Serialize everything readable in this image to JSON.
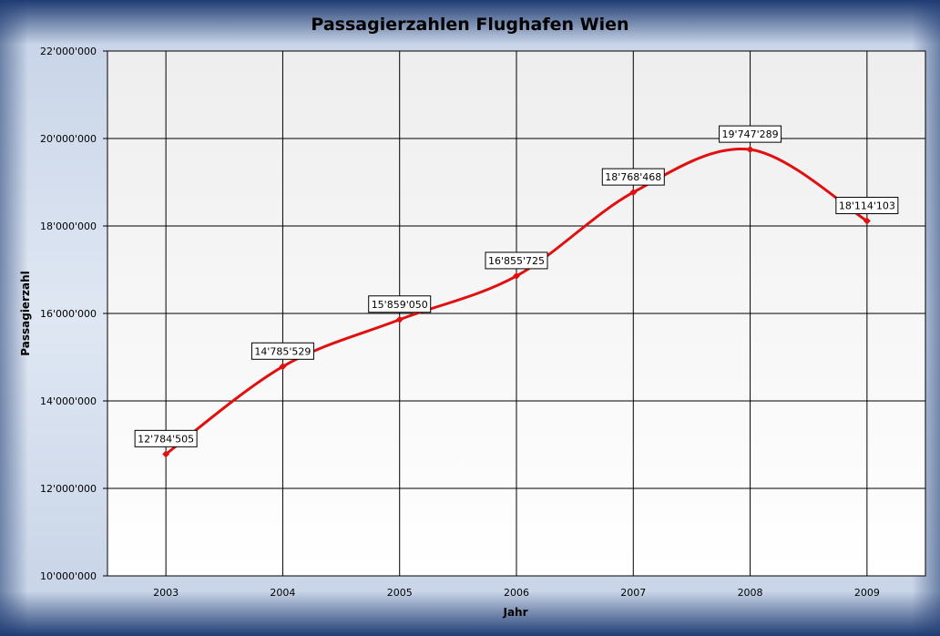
{
  "chart_data": {
    "type": "line",
    "title": "Passagierzahlen Flughafen Wien",
    "xlabel": "Jahr",
    "ylabel": "Passagierzahl",
    "categories": [
      "2003",
      "2004",
      "2005",
      "2006",
      "2007",
      "2008",
      "2009"
    ],
    "series": [
      {
        "values": [
          12784505,
          14785529,
          15859050,
          16855725,
          18768468,
          19747289,
          18114103
        ],
        "data_labels": [
          "12'784'505",
          "14'785'529",
          "15'859'050",
          "16'855'725",
          "18'768'468",
          "19'747'289",
          "18'114'103"
        ],
        "color": "#e01010",
        "smooth": true
      }
    ],
    "ylim": [
      10000000,
      22000000
    ],
    "yticks": [
      10000000,
      12000000,
      14000000,
      16000000,
      18000000,
      20000000,
      22000000
    ],
    "ytick_labels": [
      "10'000'000",
      "12'000'000",
      "14'000'000",
      "16'000'000",
      "18'000'000",
      "20'000'000",
      "22'000'000"
    ],
    "grid": true,
    "legend": "none"
  }
}
